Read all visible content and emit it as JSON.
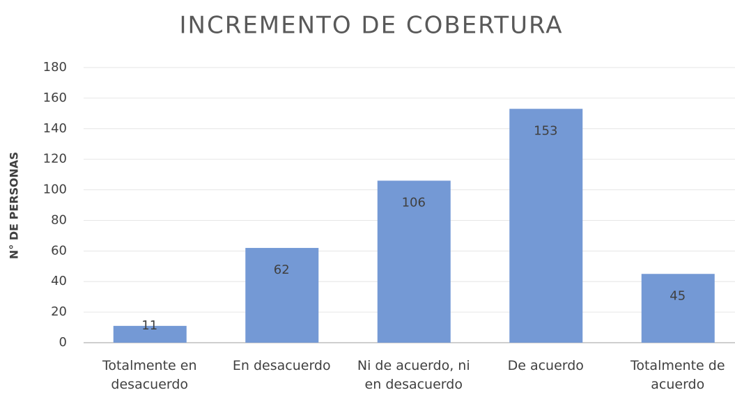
{
  "chart_data": {
    "type": "bar",
    "title": "INCREMENTO DE COBERTURA",
    "y_label": "N° DE PERSONAS",
    "categories": [
      "Totalmente en desacuerdo",
      "En desacuerdo",
      "Ni de acuerdo, ni en desacuerdo",
      "De acuerdo",
      "Totalmente de acuerdo"
    ],
    "values": [
      11,
      62,
      106,
      153,
      45
    ],
    "color": "#7499d5",
    "ylim": [
      0,
      180
    ],
    "yticks": [
      0,
      20,
      40,
      60,
      80,
      100,
      120,
      140,
      160,
      180
    ],
    "grid": true
  }
}
